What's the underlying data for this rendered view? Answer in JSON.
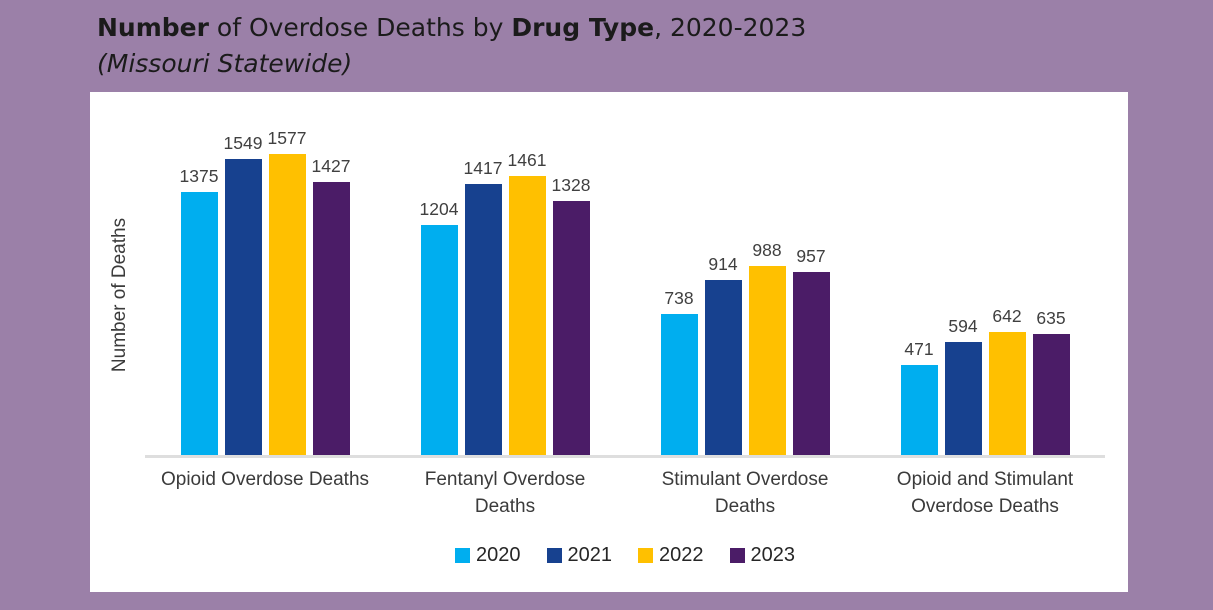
{
  "page": {
    "background": "#9B80A8",
    "panel_background": "#FFFFFF",
    "axis_line_color": "#DEDEDE",
    "label_color": "#404040"
  },
  "title": {
    "segments": {
      "bold1": "Number",
      "regular1": " of Overdose Deaths by ",
      "bold2": "Drug Type",
      "regular2": ", 2020-2023"
    },
    "subtitle": "(Missouri Statewide)"
  },
  "chart_data": {
    "type": "bar",
    "title": "Number of Overdose Deaths by Drug Type, 2020-2023 (Missouri Statewide)",
    "xlabel": "",
    "ylabel": "Number of Deaths",
    "categories": [
      "Opioid Overdose Deaths",
      "Fentanyl Overdose\nDeaths",
      "Stimulant Overdose\nDeaths",
      "Opioid and Stimulant\nOverdose Deaths"
    ],
    "series": [
      {
        "name": "2020",
        "color": "#00AEEF",
        "values": [
          1375,
          1204,
          738,
          471
        ]
      },
      {
        "name": "2021",
        "color": "#17418F",
        "values": [
          1549,
          1417,
          914,
          594
        ]
      },
      {
        "name": "2022",
        "color": "#FFC000",
        "values": [
          1577,
          1461,
          988,
          642
        ]
      },
      {
        "name": "2023",
        "color": "#4B1C67",
        "values": [
          1427,
          1328,
          957,
          635
        ]
      }
    ],
    "ylim": [
      0,
      1900
    ],
    "grid": false,
    "data_labels": true,
    "legend_position": "bottom"
  }
}
